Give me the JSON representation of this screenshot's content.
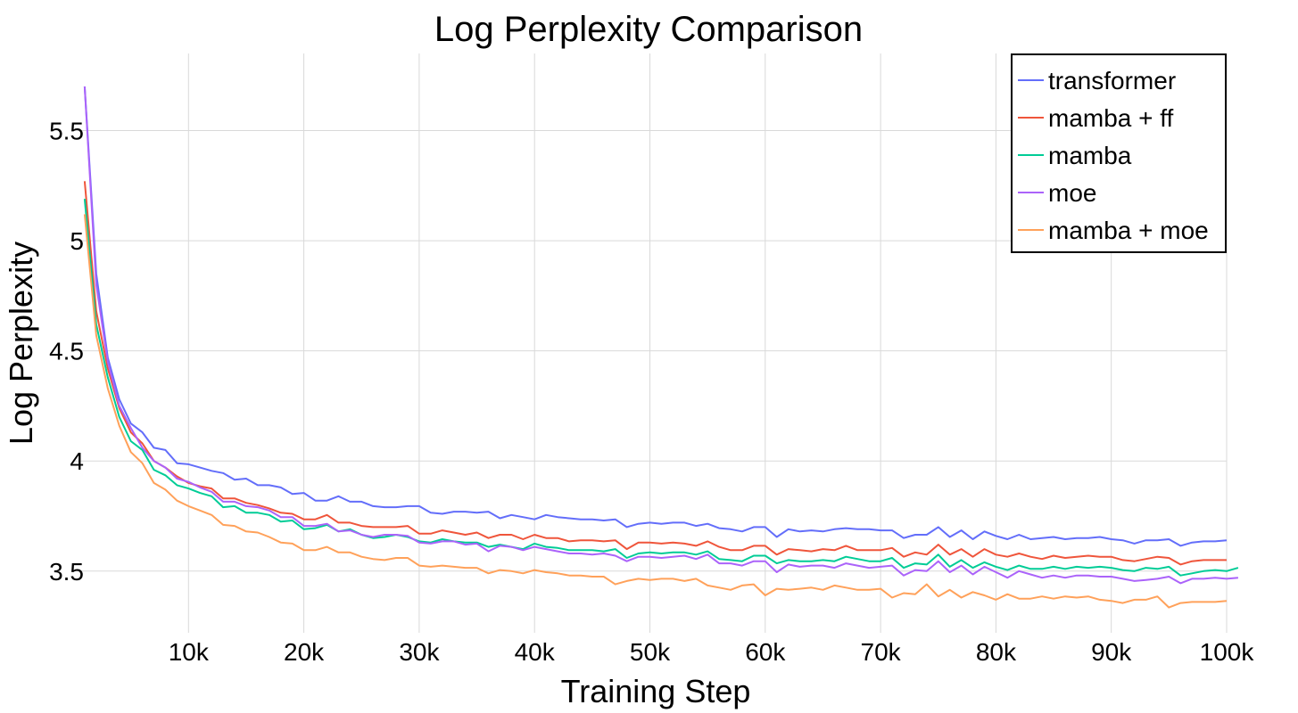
{
  "chart_data": {
    "type": "line",
    "title": "Log Perplexity Comparison",
    "xlabel": "Training Step",
    "ylabel": "Log Perplexity",
    "xlim": [
      0,
      100000
    ],
    "ylim": [
      3.22,
      5.85
    ],
    "x_ticks": [
      10000,
      20000,
      30000,
      40000,
      50000,
      60000,
      70000,
      80000,
      90000,
      100000
    ],
    "x_tick_labels": [
      "10k",
      "20k",
      "30k",
      "40k",
      "50k",
      "60k",
      "70k",
      "80k",
      "90k",
      "100k"
    ],
    "y_ticks": [
      3.5,
      4,
      4.5,
      5,
      5.5
    ],
    "y_tick_labels": [
      "3.5",
      "4",
      "4.5",
      "5",
      "5.5"
    ],
    "grid": true,
    "legend_position": "top-right",
    "x_start": 1000,
    "x_step": 1000,
    "series": [
      {
        "name": "transformer",
        "color": "#636efa",
        "values": [
          5.7,
          4.85,
          4.47,
          4.28,
          4.17,
          4.13,
          4.06,
          4.05,
          3.99,
          3.985,
          3.97,
          3.955,
          3.945,
          3.915,
          3.92,
          3.89,
          3.89,
          3.88,
          3.85,
          3.855,
          3.82,
          3.82,
          3.84,
          3.815,
          3.815,
          3.795,
          3.79,
          3.79,
          3.795,
          3.795,
          3.765,
          3.76,
          3.77,
          3.77,
          3.765,
          3.77,
          3.74,
          3.755,
          3.745,
          3.735,
          3.755,
          3.745,
          3.74,
          3.735,
          3.735,
          3.73,
          3.735,
          3.7,
          3.715,
          3.72,
          3.715,
          3.72,
          3.72,
          3.705,
          3.715,
          3.695,
          3.69,
          3.68,
          3.7,
          3.7,
          3.655,
          3.69,
          3.68,
          3.685,
          3.68,
          3.69,
          3.695,
          3.69,
          3.69,
          3.685,
          3.685,
          3.65,
          3.665,
          3.665,
          3.7,
          3.655,
          3.685,
          3.645,
          3.68,
          3.66,
          3.645,
          3.665,
          3.645,
          3.65,
          3.655,
          3.645,
          3.65,
          3.65,
          3.655,
          3.645,
          3.64,
          3.625,
          3.64,
          3.64,
          3.645,
          3.615,
          3.63,
          3.635,
          3.635,
          3.64
        ]
      },
      {
        "name": "mamba + ff",
        "color": "#ef553b",
        "values": [
          5.27,
          4.68,
          4.42,
          4.24,
          4.13,
          4.08,
          4.0,
          3.97,
          3.93,
          3.9,
          3.885,
          3.875,
          3.83,
          3.83,
          3.81,
          3.8,
          3.785,
          3.765,
          3.76,
          3.735,
          3.735,
          3.755,
          3.72,
          3.72,
          3.705,
          3.7,
          3.7,
          3.7,
          3.705,
          3.67,
          3.67,
          3.685,
          3.675,
          3.665,
          3.675,
          3.65,
          3.665,
          3.665,
          3.645,
          3.665,
          3.65,
          3.65,
          3.635,
          3.64,
          3.64,
          3.635,
          3.64,
          3.6,
          3.63,
          3.63,
          3.625,
          3.63,
          3.625,
          3.615,
          3.635,
          3.61,
          3.595,
          3.595,
          3.615,
          3.615,
          3.575,
          3.6,
          3.595,
          3.59,
          3.6,
          3.595,
          3.615,
          3.595,
          3.595,
          3.595,
          3.605,
          3.565,
          3.585,
          3.575,
          3.62,
          3.575,
          3.6,
          3.565,
          3.6,
          3.575,
          3.565,
          3.58,
          3.565,
          3.555,
          3.57,
          3.56,
          3.565,
          3.57,
          3.565,
          3.565,
          3.55,
          3.545,
          3.555,
          3.565,
          3.56,
          3.53,
          3.545,
          3.55,
          3.55,
          3.55
        ]
      },
      {
        "name": "mamba",
        "color": "#00cc96",
        "values": [
          5.19,
          4.62,
          4.38,
          4.2,
          4.09,
          4.05,
          3.96,
          3.935,
          3.89,
          3.875,
          3.855,
          3.84,
          3.79,
          3.795,
          3.765,
          3.765,
          3.755,
          3.725,
          3.73,
          3.69,
          3.695,
          3.71,
          3.68,
          3.69,
          3.665,
          3.65,
          3.655,
          3.665,
          3.655,
          3.635,
          3.63,
          3.645,
          3.635,
          3.63,
          3.63,
          3.61,
          3.62,
          3.61,
          3.6,
          3.625,
          3.61,
          3.605,
          3.595,
          3.595,
          3.595,
          3.59,
          3.6,
          3.56,
          3.58,
          3.585,
          3.58,
          3.585,
          3.585,
          3.575,
          3.59,
          3.555,
          3.55,
          3.545,
          3.57,
          3.57,
          3.535,
          3.55,
          3.545,
          3.545,
          3.55,
          3.545,
          3.565,
          3.555,
          3.545,
          3.545,
          3.56,
          3.515,
          3.535,
          3.53,
          3.575,
          3.52,
          3.55,
          3.515,
          3.54,
          3.52,
          3.505,
          3.525,
          3.51,
          3.51,
          3.52,
          3.51,
          3.52,
          3.515,
          3.52,
          3.515,
          3.505,
          3.5,
          3.515,
          3.51,
          3.52,
          3.48,
          3.49,
          3.5,
          3.505,
          3.5,
          3.515
        ]
      },
      {
        "name": "moe",
        "color": "#ab63fa",
        "values": [
          5.7,
          4.8,
          4.45,
          4.25,
          4.15,
          4.06,
          4.0,
          3.97,
          3.92,
          3.905,
          3.88,
          3.86,
          3.815,
          3.815,
          3.795,
          3.79,
          3.775,
          3.745,
          3.745,
          3.705,
          3.705,
          3.715,
          3.68,
          3.685,
          3.665,
          3.655,
          3.665,
          3.665,
          3.66,
          3.63,
          3.625,
          3.635,
          3.635,
          3.62,
          3.625,
          3.59,
          3.615,
          3.61,
          3.595,
          3.61,
          3.6,
          3.59,
          3.58,
          3.58,
          3.575,
          3.58,
          3.57,
          3.545,
          3.565,
          3.565,
          3.56,
          3.565,
          3.57,
          3.555,
          3.575,
          3.535,
          3.535,
          3.525,
          3.545,
          3.545,
          3.495,
          3.53,
          3.52,
          3.525,
          3.525,
          3.515,
          3.535,
          3.525,
          3.515,
          3.52,
          3.525,
          3.48,
          3.505,
          3.5,
          3.545,
          3.495,
          3.525,
          3.485,
          3.52,
          3.495,
          3.47,
          3.5,
          3.485,
          3.47,
          3.48,
          3.47,
          3.48,
          3.48,
          3.475,
          3.475,
          3.465,
          3.455,
          3.46,
          3.465,
          3.475,
          3.445,
          3.465,
          3.465,
          3.47,
          3.465,
          3.47
        ]
      },
      {
        "name": "mamba + moe",
        "color": "#ffa15a",
        "values": [
          5.12,
          4.57,
          4.33,
          4.16,
          4.04,
          3.99,
          3.9,
          3.87,
          3.82,
          3.795,
          3.775,
          3.755,
          3.71,
          3.705,
          3.68,
          3.675,
          3.655,
          3.63,
          3.625,
          3.595,
          3.595,
          3.61,
          3.585,
          3.585,
          3.565,
          3.555,
          3.55,
          3.56,
          3.56,
          3.525,
          3.52,
          3.525,
          3.52,
          3.515,
          3.515,
          3.49,
          3.505,
          3.5,
          3.49,
          3.505,
          3.495,
          3.49,
          3.48,
          3.48,
          3.475,
          3.475,
          3.44,
          3.455,
          3.465,
          3.46,
          3.465,
          3.465,
          3.455,
          3.465,
          3.435,
          3.425,
          3.415,
          3.435,
          3.44,
          3.39,
          3.42,
          3.415,
          3.42,
          3.425,
          3.415,
          3.435,
          3.425,
          3.415,
          3.415,
          3.42,
          3.38,
          3.4,
          3.395,
          3.44,
          3.385,
          3.415,
          3.38,
          3.405,
          3.39,
          3.37,
          3.395,
          3.375,
          3.375,
          3.385,
          3.375,
          3.385,
          3.38,
          3.385,
          3.37,
          3.365,
          3.355,
          3.37,
          3.37,
          3.385,
          3.335,
          3.355,
          3.36,
          3.36,
          3.36,
          3.365
        ]
      }
    ]
  }
}
